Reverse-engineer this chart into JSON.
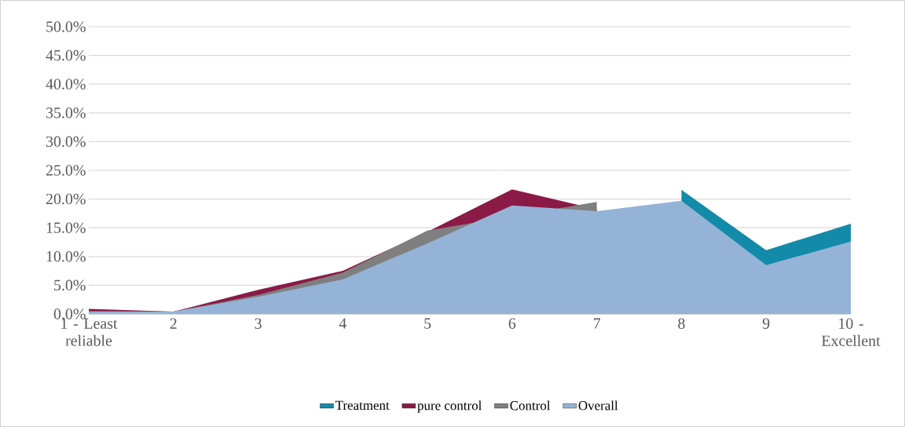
{
  "chart_data": {
    "type": "area",
    "categories": [
      "1 - Least reliable",
      "2",
      "3",
      "4",
      "5",
      "6",
      "7",
      "8",
      "9",
      "10 - Excellent"
    ],
    "series": [
      {
        "name": "Treatment",
        "color": "#138ba8",
        "values": [
          null,
          null,
          null,
          null,
          null,
          null,
          null,
          21.6,
          11.1,
          15.7
        ]
      },
      {
        "name": "pure control",
        "color": "#8b1a47",
        "values": [
          0.9,
          0.4,
          4.2,
          7.5,
          14.3,
          21.7,
          18.2,
          null,
          null,
          null
        ]
      },
      {
        "name": "Control",
        "color": "#7f7f7f",
        "values": [
          0.5,
          0.4,
          3.3,
          7.2,
          14.5,
          null,
          19.5,
          null,
          null,
          null
        ]
      },
      {
        "name": "Overall",
        "color": "#95b3d7",
        "values": [
          0.4,
          0.4,
          3.0,
          6.0,
          12.3,
          18.9,
          17.9,
          19.7,
          8.5,
          12.6
        ]
      }
    ],
    "ylim": [
      0,
      50
    ],
    "yticks": [
      {
        "value": 0,
        "label": "0.0%"
      },
      {
        "value": 5,
        "label": "5.0%"
      },
      {
        "value": 10,
        "label": "10.0%"
      },
      {
        "value": 15,
        "label": "15.0%"
      },
      {
        "value": 20,
        "label": "20.0%"
      },
      {
        "value": 25,
        "label": "25.0%"
      },
      {
        "value": 30,
        "label": "30.0%"
      },
      {
        "value": 35,
        "label": "35.0%"
      },
      {
        "value": 40,
        "label": "40.0%"
      },
      {
        "value": 45,
        "label": "45.0%"
      },
      {
        "value": 50,
        "label": "50.0%"
      }
    ],
    "grid": "y",
    "legend": "bottom"
  }
}
